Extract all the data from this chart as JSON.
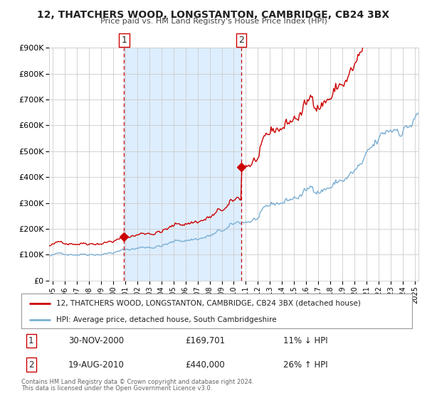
{
  "title": "12, THATCHERS WOOD, LONGSTANTON, CAMBRIDGE, CB24 3BX",
  "subtitle": "Price paid vs. HM Land Registry's House Price Index (HPI)",
  "legend_line1": "12, THATCHERS WOOD, LONGSTANTON, CAMBRIDGE, CB24 3BX (detached house)",
  "legend_line2": "HPI: Average price, detached house, South Cambridgeshire",
  "annotation1_label": "1",
  "annotation1_date": "30-NOV-2000",
  "annotation1_price": "£169,701",
  "annotation1_hpi": "11% ↓ HPI",
  "annotation2_label": "2",
  "annotation2_date": "19-AUG-2010",
  "annotation2_price": "£440,000",
  "annotation2_hpi": "26% ↑ HPI",
  "footer1": "Contains HM Land Registry data © Crown copyright and database right 2024.",
  "footer2": "This data is licensed under the Open Government Licence v3.0.",
  "sale1_x": 2000.92,
  "sale1_y": 169701,
  "sale2_x": 2010.63,
  "sale2_y": 440000,
  "vline1_x": 2000.92,
  "vline2_x": 2010.63,
  "price_color": "#cc0000",
  "hpi_color": "#7aafd4",
  "vline_color": "#cc0000",
  "highlight_color": "#ddeeff",
  "ylim": [
    0,
    900000
  ],
  "xlim_left": 1994.7,
  "xlim_right": 2025.3,
  "background_color": "#ffffff",
  "plot_bg_color": "#ffffff"
}
